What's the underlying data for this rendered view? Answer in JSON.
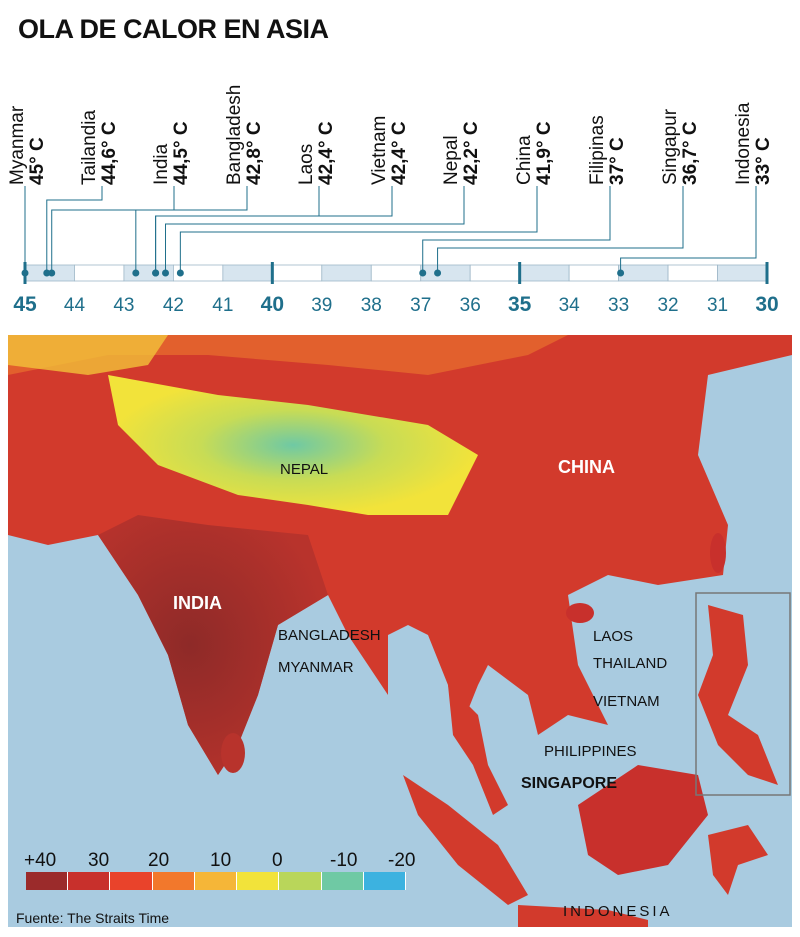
{
  "title": "OLA DE CALOR EN ASIA",
  "source": "Fuente: The Straits Time",
  "countries": [
    {
      "name": "Myanmar",
      "temp": "45° C",
      "value": 45.0
    },
    {
      "name": "Tailandia",
      "temp": "44,6° C",
      "value": 44.6
    },
    {
      "name": "India",
      "temp": "44,5° C",
      "value": 44.5
    },
    {
      "name": "Bangladesh",
      "temp": "42,8° C",
      "value": 42.8
    },
    {
      "name": "Laos",
      "temp": "42,4° C",
      "value": 42.4
    },
    {
      "name": "Vietnam",
      "temp": "42,4° C",
      "value": 42.4
    },
    {
      "name": "Nepal",
      "temp": "42,2° C",
      "value": 42.2
    },
    {
      "name": "China",
      "temp": "41,9° C",
      "value": 41.9
    },
    {
      "name": "Filipinas",
      "temp": "37° C",
      "value": 37.0
    },
    {
      "name": "Singapur",
      "temp": "36,7° C",
      "value": 36.7
    },
    {
      "name": "Indonesia",
      "temp": "33° C",
      "value": 33.0
    }
  ],
  "scale": {
    "min": 30,
    "max": 45,
    "ticks": [
      "45",
      "44",
      "43",
      "42",
      "41",
      "40",
      "39",
      "38",
      "37",
      "36",
      "35",
      "34",
      "33",
      "32",
      "31",
      "30"
    ],
    "major_ticks": [
      "45",
      "40",
      "35",
      "30"
    ]
  },
  "map_labels": {
    "china": "CHINA",
    "india": "INDIA",
    "nepal": "NEPAL",
    "bangladesh": "BANGLADESH",
    "myanmar": "MYANMAR",
    "laos": "LAOS",
    "thailand": "THAILAND",
    "vietnam": "VIETNAM",
    "philippines": "PHILIPPINES",
    "singapore": "SINGAPORE",
    "indonesia": "INDONESIA"
  },
  "legend": {
    "labels": [
      "+40",
      "30",
      "20",
      "10",
      "0",
      "-10",
      "-20"
    ],
    "colors": [
      "#9b2b2b",
      "#c8302c",
      "#e9432b",
      "#f2782c",
      "#f5b638",
      "#f2e33a",
      "#b9d65a",
      "#6fc9a4",
      "#3cb2e0"
    ]
  },
  "colors": {
    "accent": "#1f6f8b",
    "sea": "#a9cbe0",
    "scale_fill": "#d7e5ef"
  }
}
